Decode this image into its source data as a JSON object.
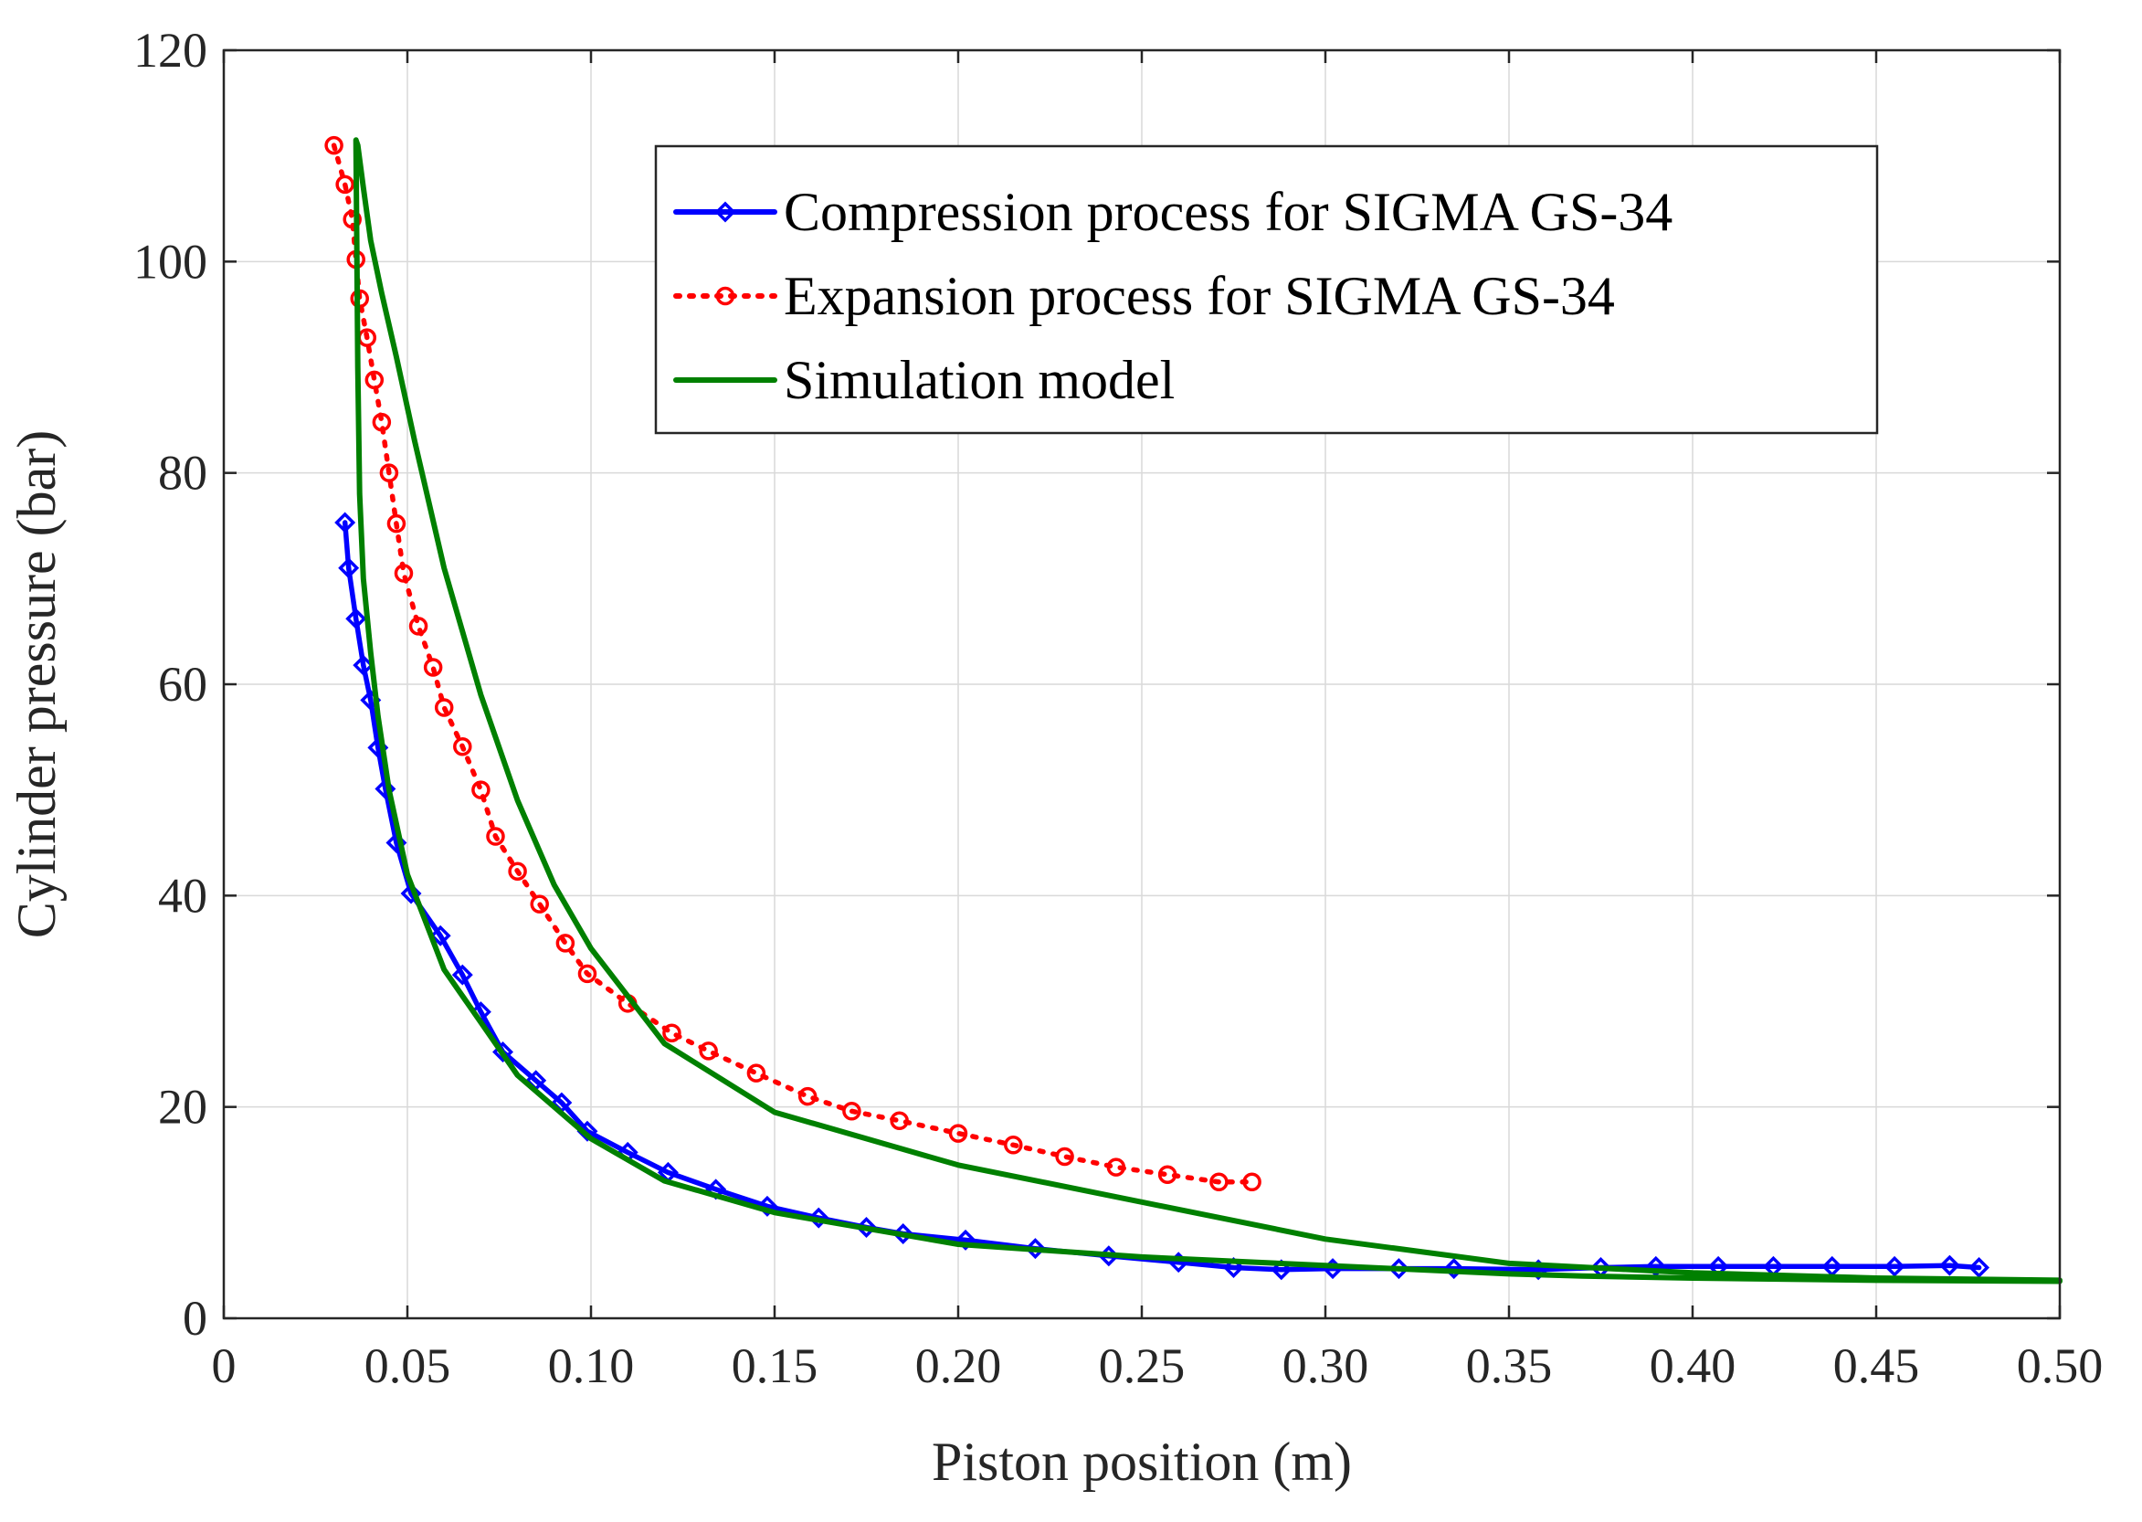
{
  "chart_data": {
    "type": "line",
    "title": "",
    "xlabel": "Piston position (m)",
    "ylabel": "Cylinder pressure (bar)",
    "xlim": [
      0,
      0.5
    ],
    "ylim": [
      0,
      120
    ],
    "grid": true,
    "legend_position": "top-right",
    "x_ticks": [
      0,
      0.05,
      0.1,
      0.15,
      0.2,
      0.25,
      0.3,
      0.35,
      0.4,
      0.45,
      0.5
    ],
    "x_tick_labels": [
      "0",
      "0.05",
      "0.10",
      "0.15",
      "0.20",
      "0.25",
      "0.30",
      "0.35",
      "0.40",
      "0.45",
      "0.50"
    ],
    "y_ticks": [
      0,
      20,
      40,
      60,
      80,
      100,
      120
    ],
    "y_tick_labels": [
      "0",
      "20",
      "40",
      "60",
      "80",
      "100",
      "120"
    ],
    "series": [
      {
        "name": "Compression process for SIGMA GS-34",
        "color": "#0000ff",
        "line_style": "solid",
        "marker": "diamond",
        "x": [
          0.033,
          0.034,
          0.036,
          0.038,
          0.04,
          0.042,
          0.044,
          0.047,
          0.051,
          0.059,
          0.065,
          0.07,
          0.076,
          0.085,
          0.092,
          0.099,
          0.11,
          0.121,
          0.134,
          0.148,
          0.162,
          0.175,
          0.185,
          0.202,
          0.221,
          0.241,
          0.26,
          0.275,
          0.288,
          0.302,
          0.32,
          0.335,
          0.358,
          0.375,
          0.39,
          0.407,
          0.422,
          0.438,
          0.455,
          0.47,
          0.478
        ],
        "y": [
          75.3,
          71.0,
          66.2,
          61.8,
          58.5,
          54.0,
          50.1,
          45.0,
          40.2,
          36.2,
          32.5,
          29.0,
          25.2,
          22.5,
          20.4,
          17.7,
          15.7,
          13.8,
          12.2,
          10.6,
          9.5,
          8.6,
          8.0,
          7.4,
          6.6,
          5.9,
          5.3,
          4.8,
          4.6,
          4.7,
          4.7,
          4.7,
          4.6,
          4.8,
          4.9,
          4.9,
          4.9,
          4.9,
          4.9,
          5.0,
          4.8
        ]
      },
      {
        "name": "Expansion process for SIGMA GS-34",
        "color": "#ff0000",
        "line_style": "dotted",
        "marker": "circle",
        "x": [
          0.03,
          0.033,
          0.035,
          0.036,
          0.037,
          0.039,
          0.041,
          0.043,
          0.045,
          0.047,
          0.049,
          0.053,
          0.057,
          0.06,
          0.065,
          0.07,
          0.074,
          0.08,
          0.086,
          0.093,
          0.099,
          0.11,
          0.122,
          0.132,
          0.145,
          0.159,
          0.171,
          0.184,
          0.2,
          0.215,
          0.229,
          0.243,
          0.257,
          0.271,
          0.28
        ],
        "y": [
          111.0,
          107.3,
          104.0,
          100.2,
          96.5,
          92.8,
          88.8,
          84.8,
          80.0,
          75.2,
          70.5,
          65.5,
          61.6,
          57.8,
          54.1,
          50.0,
          45.6,
          42.3,
          39.2,
          35.5,
          32.6,
          29.8,
          27.0,
          25.3,
          23.2,
          21.0,
          19.6,
          18.7,
          17.5,
          16.4,
          15.3,
          14.3,
          13.6,
          12.9,
          12.9
        ]
      },
      {
        "name": "Simulation model",
        "color": "#008000",
        "line_style": "solid",
        "marker": "none",
        "x": [
          0.5,
          0.45,
          0.4,
          0.37,
          0.35,
          0.3,
          0.25,
          0.2,
          0.15,
          0.12,
          0.1,
          0.08,
          0.07,
          0.06,
          0.05,
          0.045,
          0.042,
          0.04,
          0.038,
          0.037,
          0.0365,
          0.036,
          0.0365,
          0.038,
          0.04,
          0.043,
          0.047,
          0.052,
          0.06,
          0.07,
          0.08,
          0.09,
          0.1,
          0.12,
          0.15,
          0.2,
          0.25,
          0.3,
          0.35,
          0.4,
          0.45,
          0.5
        ],
        "y": [
          3.5,
          3.6,
          3.8,
          4.0,
          4.2,
          5.0,
          5.8,
          7.0,
          10.0,
          13.0,
          17.0,
          23.0,
          28.0,
          33.0,
          42.0,
          50.0,
          57.0,
          63.0,
          70.0,
          78.0,
          90.0,
          111.5,
          111.0,
          107.0,
          102.0,
          97.0,
          91.0,
          83.0,
          71.0,
          59.0,
          49.0,
          41.0,
          35.0,
          26.0,
          19.5,
          14.5,
          11.0,
          7.5,
          5.2,
          4.3,
          3.8,
          3.6
        ]
      }
    ]
  }
}
